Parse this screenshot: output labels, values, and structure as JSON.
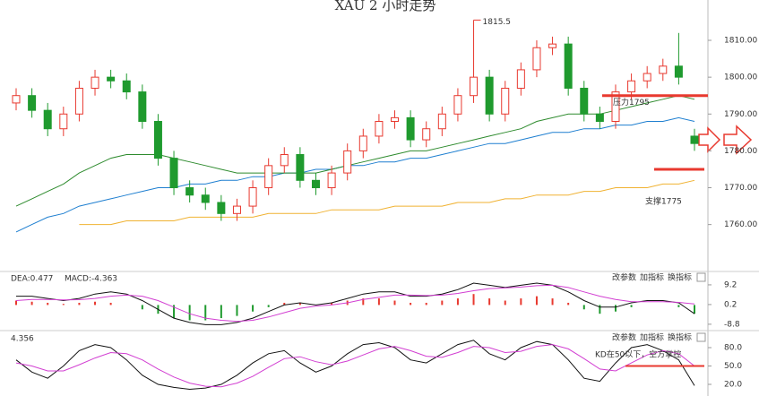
{
  "chart_data": [
    {
      "type": "candlestick",
      "title": "XAU 2 小时走势",
      "open": [
        1793,
        1795,
        1791,
        1786,
        1790,
        1797,
        1800,
        1799,
        1796,
        1788,
        1778,
        1770,
        1768,
        1766,
        1763,
        1765,
        1770,
        1776,
        1779,
        1772,
        1770,
        1774,
        1780,
        1784,
        1788,
        1789,
        1783,
        1786,
        1790,
        1795,
        1800,
        1790,
        1797,
        1802,
        1808,
        1809,
        1797,
        1790,
        1788,
        1796,
        1799,
        1801,
        1803,
        1784
      ],
      "high": [
        1797,
        1797,
        1793,
        1792,
        1799,
        1802,
        1802,
        1801,
        1798,
        1790,
        1780,
        1772,
        1770,
        1768,
        1767,
        1772,
        1778,
        1781,
        1781,
        1774,
        1776,
        1782,
        1786,
        1790,
        1791,
        1791,
        1788,
        1792,
        1797,
        1815.5,
        1802,
        1799,
        1804,
        1810,
        1811,
        1811,
        1799,
        1792,
        1798,
        1801,
        1803,
        1805,
        1812,
        1786
      ],
      "low": [
        1791,
        1789,
        1784,
        1784,
        1788,
        1795,
        1797,
        1794,
        1786,
        1776,
        1768,
        1766,
        1764,
        1761,
        1761,
        1763,
        1768,
        1774,
        1770,
        1768,
        1768,
        1772,
        1778,
        1782,
        1786,
        1781,
        1781,
        1784,
        1788,
        1793,
        1788,
        1788,
        1795,
        1800,
        1806,
        1795,
        1788,
        1786,
        1786,
        1794,
        1797,
        1799,
        1798,
        1780
      ],
      "close": [
        1795,
        1791,
        1786,
        1790,
        1797,
        1800,
        1799,
        1796,
        1788,
        1778,
        1770,
        1768,
        1766,
        1763,
        1765,
        1770,
        1776,
        1779,
        1772,
        1770,
        1774,
        1780,
        1784,
        1788,
        1789,
        1783,
        1786,
        1790,
        1795,
        1800,
        1790,
        1797,
        1802,
        1808,
        1809,
        1797,
        1790,
        1788,
        1796,
        1799,
        1801,
        1803,
        1800,
        1782
      ],
      "up_color": "#e8392f",
      "down_color": "#1f9a2e",
      "series": [
        {
          "color": "#1e7fd0",
          "values": [
            1758,
            1760,
            1762,
            1763,
            1765,
            1766,
            1767,
            1768,
            1769,
            1770,
            1770,
            1771,
            1771,
            1772,
            1772,
            1773,
            1773,
            1774,
            1774,
            1775,
            1775,
            1776,
            1776,
            1777,
            1777,
            1778,
            1778,
            1779,
            1780,
            1781,
            1782,
            1782,
            1783,
            1784,
            1785,
            1785,
            1786,
            1786,
            1787,
            1787,
            1788,
            1788,
            1789,
            1788
          ]
        },
        {
          "color": "#f0b232",
          "values": [
            null,
            null,
            null,
            null,
            1760,
            1760,
            1760,
            1761,
            1761,
            1761,
            1761,
            1762,
            1762,
            1762,
            1762,
            1762,
            1763,
            1763,
            1763,
            1763,
            1764,
            1764,
            1764,
            1764,
            1765,
            1765,
            1765,
            1765,
            1766,
            1766,
            1766,
            1767,
            1767,
            1768,
            1768,
            1768,
            1769,
            1769,
            1770,
            1770,
            1770,
            1771,
            1771,
            1772
          ]
        },
        {
          "color": "#2e8b2e",
          "values": [
            1765,
            1767,
            1769,
            1771,
            1774,
            1776,
            1778,
            1779,
            1779,
            1779,
            1778,
            1777,
            1776,
            1775,
            1774,
            1774,
            1774,
            1774,
            1774,
            1774,
            1775,
            1776,
            1777,
            1778,
            1779,
            1780,
            1780,
            1781,
            1782,
            1783,
            1784,
            1785,
            1786,
            1788,
            1789,
            1790,
            1790,
            1790,
            1791,
            1792,
            1793,
            1794,
            1795,
            1794
          ]
        }
      ],
      "levels": [
        {
          "label": "压力1795",
          "value": 1795
        },
        {
          "label": "支撑1775",
          "value": 1775
        }
      ],
      "annotation": "1815.5",
      "ylim": [
        1748,
        1819
      ],
      "yticks": [
        {
          "value": 1760,
          "label": "1760.00"
        },
        {
          "value": 1770,
          "label": "1770.00"
        },
        {
          "value": 1780,
          "label": "1780.00"
        },
        {
          "value": 1790,
          "label": "1790.00"
        },
        {
          "value": 1800,
          "label": "1800.00"
        },
        {
          "value": 1810,
          "label": "1810.00"
        }
      ]
    },
    {
      "type": "macd",
      "header": [
        "DEA:0.477",
        "MACD:-4.363"
      ],
      "toolbar": [
        "改参数",
        "加指标",
        "换指标"
      ],
      "values": [
        2,
        1.5,
        1,
        0.5,
        1,
        1.5,
        1,
        0,
        -2,
        -4,
        -6,
        -7,
        -7,
        -6,
        -5,
        -3,
        -1,
        1,
        1,
        0,
        1,
        2,
        3,
        3,
        2,
        1,
        1,
        2,
        3,
        5,
        3,
        2,
        3,
        4,
        3,
        1,
        -2,
        -4,
        -3,
        -1,
        0,
        0,
        -1,
        -4
      ],
      "series": [
        {
          "color": "#111111",
          "values": [
            4,
            4,
            3,
            2,
            3,
            5,
            6,
            5,
            2,
            -2,
            -6,
            -8,
            -9,
            -9,
            -8,
            -6,
            -3,
            0,
            1,
            0,
            1,
            3,
            5,
            6,
            6,
            4,
            4,
            5,
            7,
            10,
            9,
            8,
            9,
            10,
            9,
            6,
            2,
            -1,
            -1,
            1,
            2,
            2,
            1,
            -4
          ]
        },
        {
          "color": "#d23fd2",
          "values": [
            2,
            2.5,
            2.5,
            2.3,
            2.4,
            3,
            4,
            4.5,
            4,
            2,
            -1,
            -4,
            -6,
            -7,
            -7.5,
            -7,
            -5.5,
            -3.5,
            -1.5,
            -0.5,
            0,
            1,
            2.5,
            3.5,
            4.5,
            4.5,
            4.3,
            4.5,
            5.3,
            6.5,
            7.5,
            7.8,
            8.2,
            8.8,
            9,
            8,
            6,
            4,
            2.5,
            1.5,
            1.5,
            1.5,
            1.2,
            0.5
          ]
        }
      ],
      "ylim": [
        -11.3,
        14.5
      ],
      "yticks": [
        {
          "value": 9.2,
          "label": "9.2"
        },
        {
          "value": 0.2,
          "label": "0.2"
        },
        {
          "value": -8.8,
          "label": "-8.8"
        }
      ]
    },
    {
      "type": "line",
      "header": [
        "4.356"
      ],
      "toolbar": [
        "改参数",
        "加指标",
        "换指标"
      ],
      "annotation": "KD在50以下，空方掌控",
      "series": [
        {
          "color": "#111111",
          "values": [
            60,
            40,
            30,
            50,
            75,
            85,
            80,
            60,
            35,
            20,
            15,
            12,
            14,
            20,
            35,
            55,
            70,
            75,
            55,
            40,
            50,
            70,
            85,
            88,
            80,
            60,
            55,
            70,
            85,
            92,
            70,
            60,
            80,
            90,
            85,
            60,
            30,
            25,
            55,
            80,
            85,
            75,
            60,
            18
          ]
        },
        {
          "color": "#d23fd2",
          "values": [
            55,
            50,
            42,
            42,
            52,
            63,
            72,
            70,
            60,
            45,
            32,
            22,
            17,
            16,
            22,
            33,
            48,
            62,
            65,
            57,
            52,
            58,
            68,
            78,
            82,
            75,
            66,
            64,
            72,
            82,
            80,
            72,
            74,
            82,
            85,
            78,
            62,
            45,
            42,
            55,
            68,
            75,
            70,
            50
          ]
        }
      ],
      "ylim": [
        8.3,
        103.4
      ],
      "yticks": [
        {
          "value": 80,
          "label": "80.0"
        },
        {
          "value": 50,
          "label": "50.0"
        },
        {
          "value": 20,
          "label": "20.0"
        }
      ]
    }
  ]
}
